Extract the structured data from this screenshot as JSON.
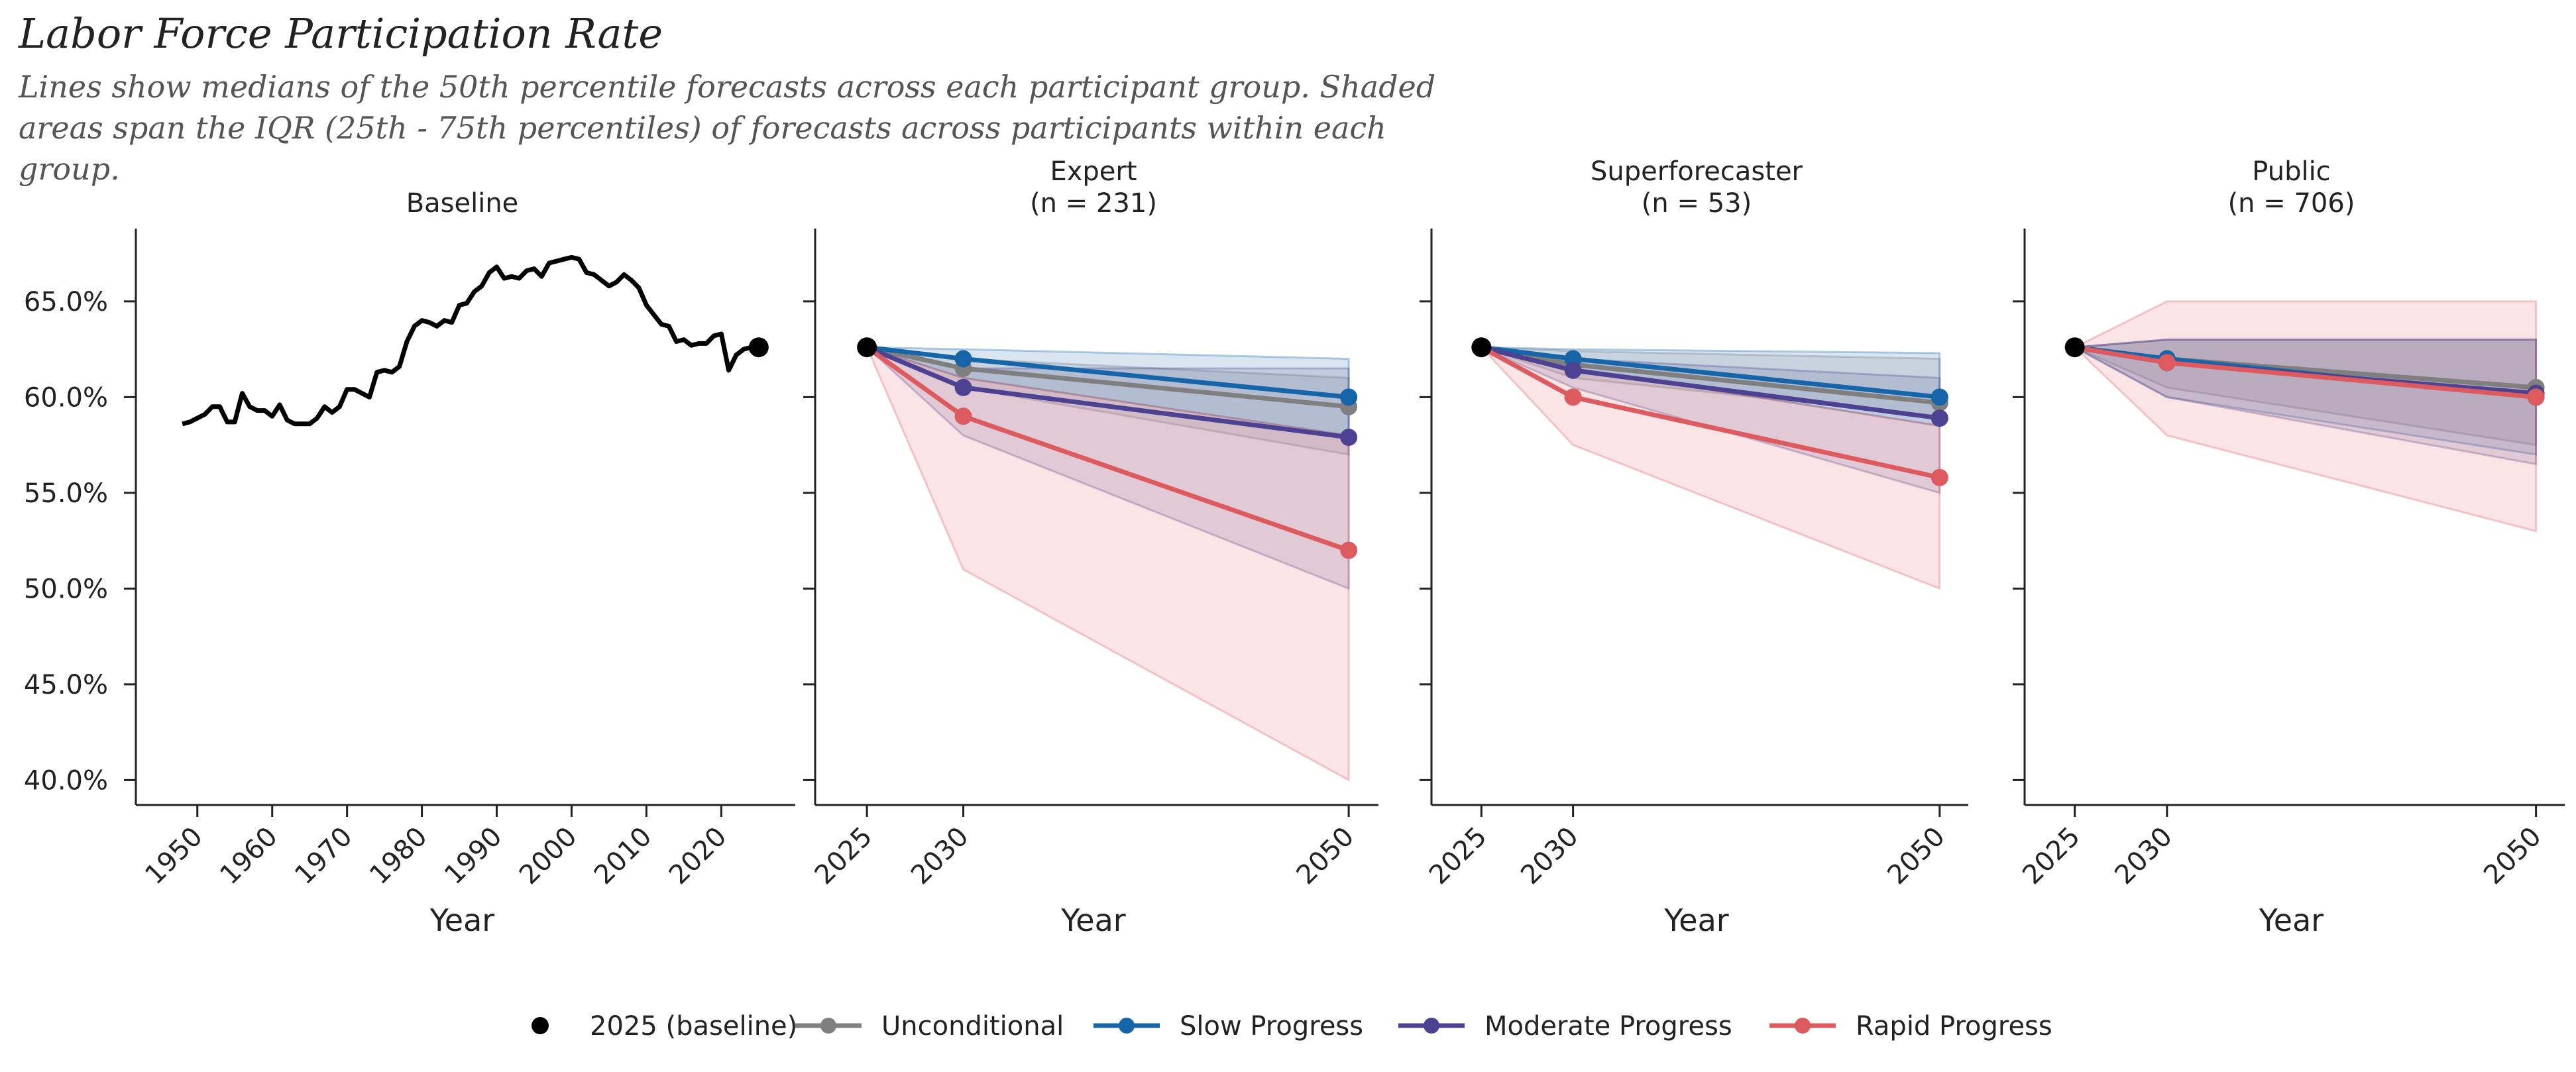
{
  "title": "Labor Force Participation Rate",
  "subtitle": "Lines show medians of the 50th percentile forecasts across each participant group. Shaded areas span the IQR (25th - 75th percentiles) of forecasts across participants within each group.",
  "colors": {
    "baseline": "#000000",
    "unconditional": "#7f7f7f",
    "slow": "#1565a8",
    "moderate": "#4c4291",
    "rapid": "#dd5a5f"
  },
  "legend": [
    {
      "key": "baseline",
      "label": "2025 (baseline)",
      "style": "dot"
    },
    {
      "key": "unconditional",
      "label": "Unconditional",
      "style": "line"
    },
    {
      "key": "slow",
      "label": "Slow Progress",
      "style": "line"
    },
    {
      "key": "moderate",
      "label": "Moderate Progress",
      "style": "line"
    },
    {
      "key": "rapid",
      "label": "Rapid Progress",
      "style": "line"
    }
  ],
  "chart_data": [
    {
      "type": "line",
      "title": "Baseline",
      "xlabel": "Year",
      "ylabel": "",
      "ylim": [
        38.7,
        68.8
      ],
      "yticks": [
        40,
        45,
        50,
        55,
        60,
        65
      ],
      "ytick_labels": [
        "40.0%",
        "45.0%",
        "50.0%",
        "55.0%",
        "60.0%",
        "65.0%"
      ],
      "xlim": [
        1944,
        2029
      ],
      "xticks": [
        1950,
        1960,
        1970,
        1980,
        1990,
        2000,
        2010,
        2020
      ],
      "xtick_labels": [
        "1950",
        "1960",
        "1970",
        "1980",
        "1990",
        "2000",
        "2010",
        "2020"
      ],
      "series": [
        {
          "key": "baseline",
          "x": [
            1948,
            1949,
            1950,
            1951,
            1952,
            1953,
            1954,
            1955,
            1956,
            1957,
            1958,
            1959,
            1960,
            1961,
            1962,
            1963,
            1964,
            1965,
            1966,
            1967,
            1968,
            1969,
            1970,
            1971,
            1972,
            1973,
            1974,
            1975,
            1976,
            1977,
            1978,
            1979,
            1980,
            1981,
            1982,
            1983,
            1984,
            1985,
            1986,
            1987,
            1988,
            1989,
            1990,
            1991,
            1992,
            1993,
            1994,
            1995,
            1996,
            1997,
            1998,
            1999,
            2000,
            2001,
            2002,
            2003,
            2004,
            2005,
            2006,
            2007,
            2008,
            2009,
            2010,
            2011,
            2012,
            2013,
            2014,
            2015,
            2016,
            2017,
            2018,
            2019,
            2020,
            2021,
            2022,
            2023,
            2024
          ],
          "values": [
            58.6,
            58.7,
            58.9,
            59.1,
            59.5,
            59.5,
            58.7,
            58.7,
            60.2,
            59.5,
            59.3,
            59.3,
            59.0,
            59.6,
            58.8,
            58.6,
            58.6,
            58.6,
            58.9,
            59.5,
            59.2,
            59.5,
            60.4,
            60.4,
            60.2,
            60.0,
            61.3,
            61.4,
            61.3,
            61.6,
            62.9,
            63.7,
            64.0,
            63.9,
            63.7,
            64.0,
            63.9,
            64.8,
            64.9,
            65.5,
            65.8,
            66.5,
            66.8,
            66.2,
            66.3,
            66.2,
            66.6,
            66.7,
            66.3,
            67.0,
            67.1,
            67.2,
            67.3,
            67.2,
            66.5,
            66.4,
            66.1,
            65.8,
            66.0,
            66.4,
            66.1,
            65.7,
            64.8,
            64.3,
            63.8,
            63.7,
            62.9,
            63.0,
            62.7,
            62.8,
            62.8,
            63.2,
            63.3,
            61.4,
            62.2,
            62.5,
            62.6
          ]
        }
      ],
      "baseline_point": {
        "x": 2025,
        "y": 62.6
      }
    },
    {
      "type": "line",
      "title": "Expert",
      "subtitle": "(n = 231)",
      "xlabel": "Year",
      "ylim": [
        38.7,
        68.8
      ],
      "xlim": [
        2023,
        2051.2
      ],
      "xticks": [
        2025,
        2030,
        2050
      ],
      "xtick_labels": [
        "2025",
        "2030",
        "2050"
      ],
      "x": [
        2025,
        2030,
        2050
      ],
      "series": [
        {
          "key": "unconditional",
          "values": [
            62.6,
            61.5,
            59.5
          ],
          "iqr_low": [
            62.6,
            60.5,
            57.0
          ],
          "iqr_high": [
            62.6,
            62.0,
            61.0
          ]
        },
        {
          "key": "slow",
          "values": [
            62.6,
            62.0,
            60.0
          ],
          "iqr_low": [
            62.6,
            61.0,
            58.0
          ],
          "iqr_high": [
            62.6,
            62.5,
            62.0
          ]
        },
        {
          "key": "moderate",
          "values": [
            62.6,
            60.5,
            57.9
          ],
          "iqr_low": [
            62.6,
            58.0,
            50.0
          ],
          "iqr_high": [
            62.6,
            61.5,
            61.5
          ]
        },
        {
          "key": "rapid",
          "values": [
            62.6,
            59.0,
            52.0
          ],
          "iqr_low": [
            62.6,
            51.0,
            40.0
          ],
          "iqr_high": [
            62.6,
            61.0,
            58.0
          ]
        }
      ],
      "baseline_point": {
        "x": 2025,
        "y": 62.6
      }
    },
    {
      "type": "line",
      "title": "Superforecaster",
      "subtitle": "(n = 53)",
      "xlabel": "Year",
      "ylim": [
        38.7,
        68.8
      ],
      "xlim": [
        2023,
        2051.2
      ],
      "xticks": [
        2025,
        2030,
        2050
      ],
      "xtick_labels": [
        "2025",
        "2030",
        "2050"
      ],
      "x": [
        2025,
        2030,
        2050
      ],
      "series": [
        {
          "key": "unconditional",
          "values": [
            62.6,
            61.7,
            59.7
          ],
          "iqr_low": [
            62.6,
            61.0,
            59.0
          ],
          "iqr_high": [
            62.6,
            62.4,
            62.0
          ]
        },
        {
          "key": "slow",
          "values": [
            62.6,
            62.0,
            60.0
          ],
          "iqr_low": [
            62.6,
            61.5,
            58.5
          ],
          "iqr_high": [
            62.6,
            62.5,
            62.3
          ]
        },
        {
          "key": "moderate",
          "values": [
            62.6,
            61.4,
            58.9
          ],
          "iqr_low": [
            62.6,
            60.5,
            55.0
          ],
          "iqr_high": [
            62.6,
            62.0,
            61.0
          ]
        },
        {
          "key": "rapid",
          "values": [
            62.6,
            60.0,
            55.8
          ],
          "iqr_low": [
            62.6,
            57.5,
            50.0
          ],
          "iqr_high": [
            62.6,
            61.5,
            58.5
          ]
        }
      ],
      "baseline_point": {
        "x": 2025,
        "y": 62.6
      }
    },
    {
      "type": "line",
      "title": "Public",
      "subtitle": "(n = 706)",
      "xlabel": "Year",
      "ylim": [
        38.7,
        68.8
      ],
      "xlim": [
        2023,
        2051.2
      ],
      "xticks": [
        2025,
        2030,
        2050
      ],
      "xtick_labels": [
        "2025",
        "2030",
        "2050"
      ],
      "x": [
        2025,
        2030,
        2050
      ],
      "series": [
        {
          "key": "unconditional",
          "values": [
            62.6,
            62.0,
            60.5
          ],
          "iqr_low": [
            62.6,
            60.5,
            57.5
          ],
          "iqr_high": [
            62.6,
            63.0,
            63.0
          ]
        },
        {
          "key": "slow",
          "values": [
            62.6,
            62.0,
            60.0
          ],
          "iqr_low": [
            62.6,
            60.0,
            57.0
          ],
          "iqr_high": [
            62.6,
            63.0,
            63.0
          ]
        },
        {
          "key": "moderate",
          "values": [
            62.6,
            61.8,
            60.2
          ],
          "iqr_low": [
            62.6,
            60.0,
            56.5
          ],
          "iqr_high": [
            62.6,
            63.0,
            63.0
          ]
        },
        {
          "key": "rapid",
          "values": [
            62.6,
            61.8,
            60.0
          ],
          "iqr_low": [
            62.6,
            58.0,
            53.0
          ],
          "iqr_high": [
            62.6,
            65.0,
            65.0
          ]
        }
      ],
      "baseline_point": {
        "x": 2025,
        "y": 62.6
      }
    }
  ]
}
